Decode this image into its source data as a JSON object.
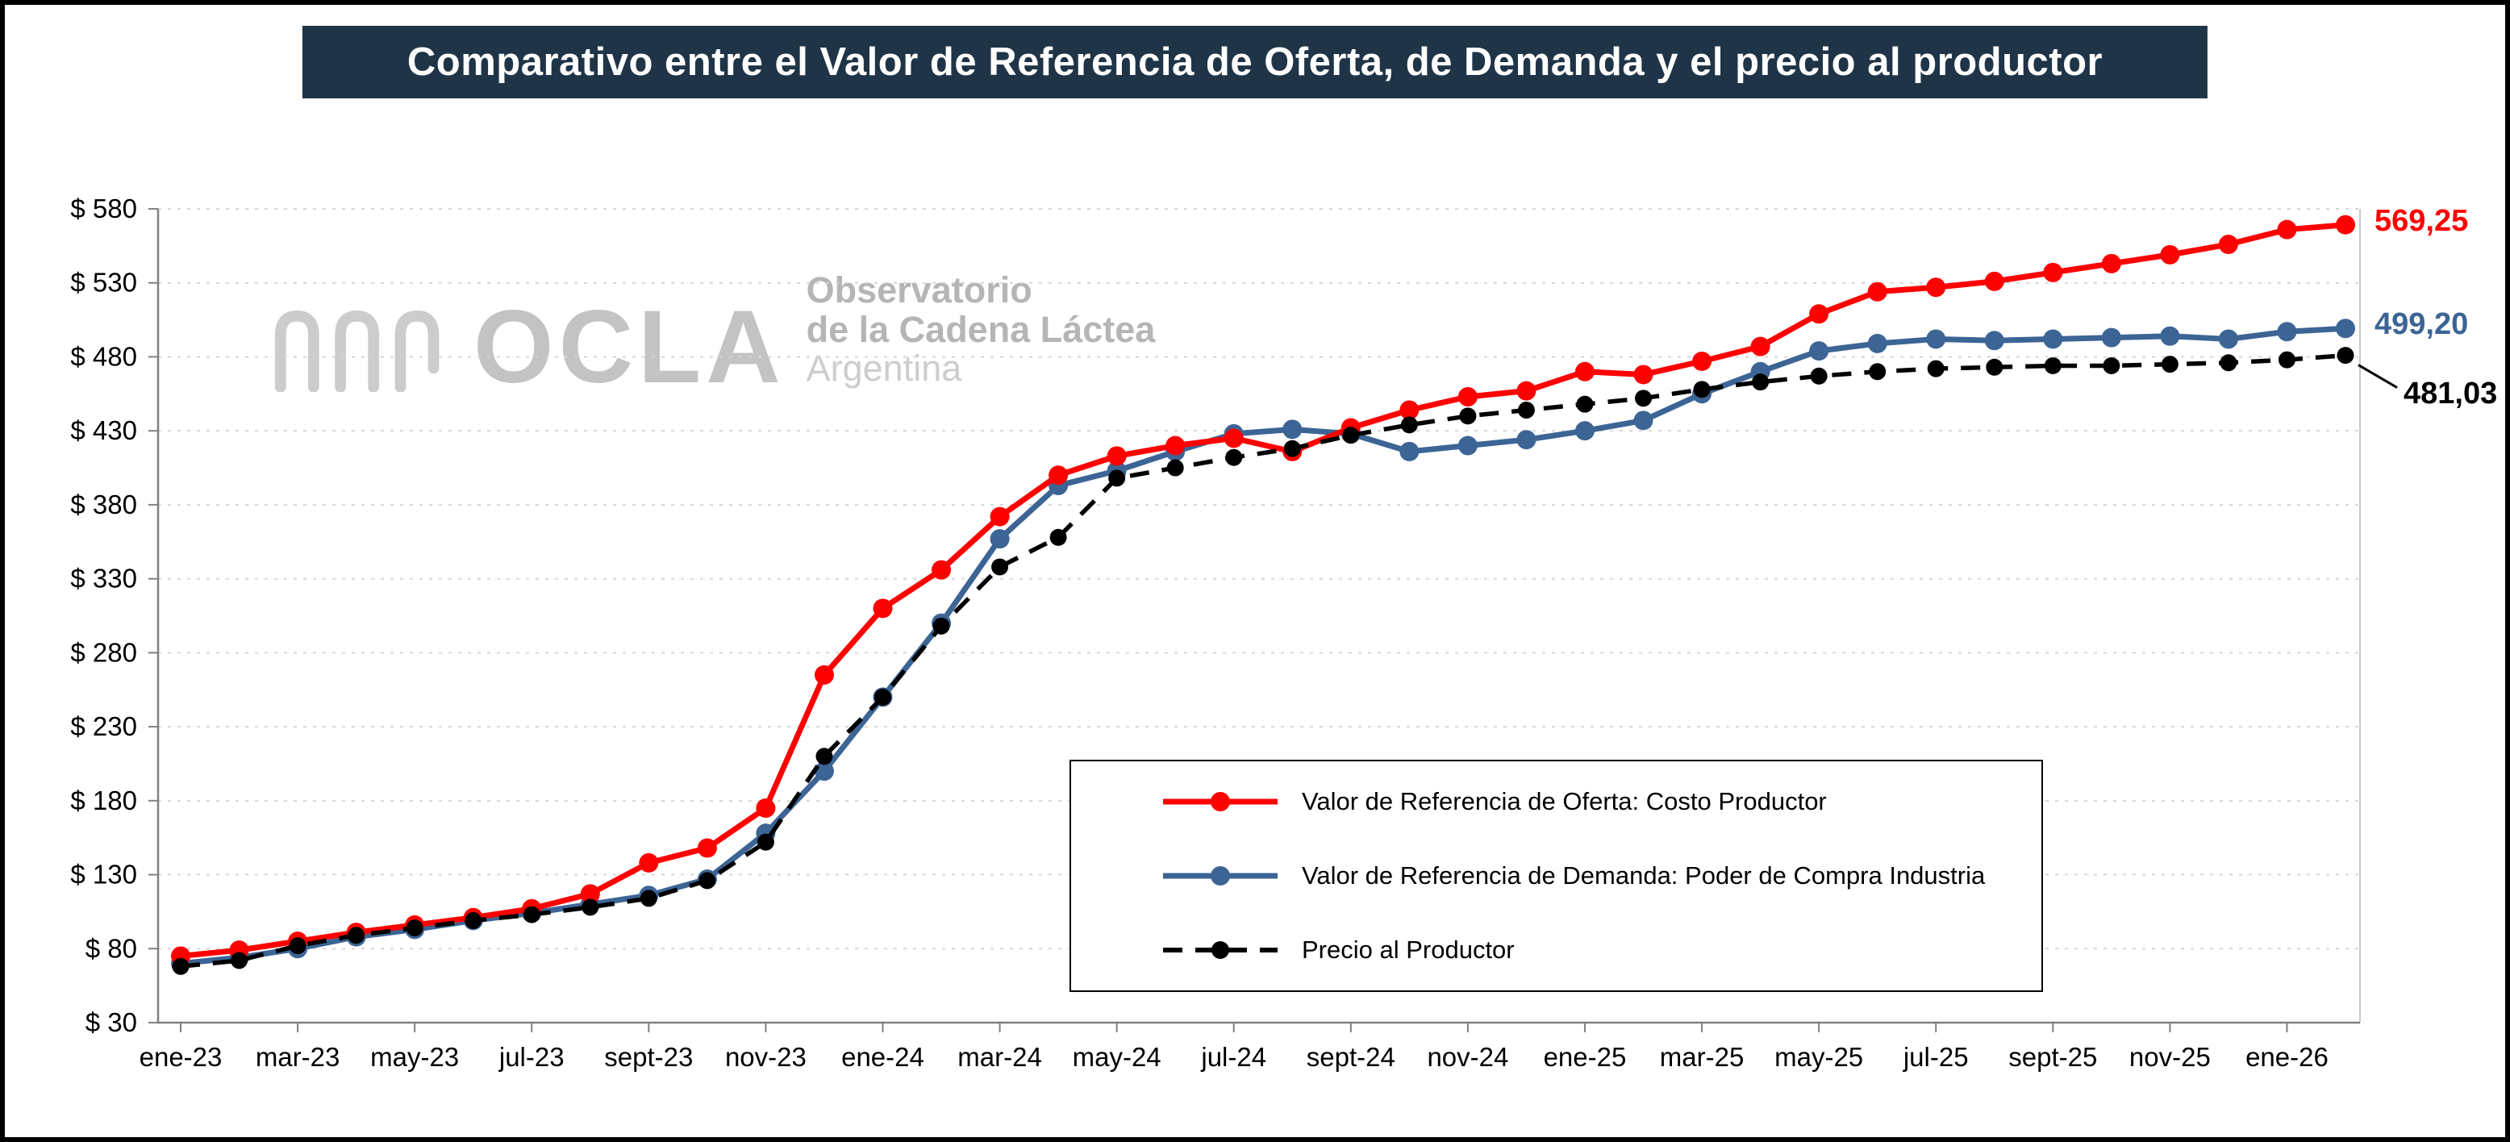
{
  "chart_data": {
    "type": "line",
    "title": "Comparativo entre el Valor de Referencia de Oferta, de Demanda y el precio al productor",
    "ylim": [
      30,
      580
    ],
    "y_ticks": [
      580,
      530,
      480,
      430,
      380,
      330,
      280,
      230,
      180,
      130,
      80,
      30
    ],
    "y_tick_prefix": "$ ",
    "x": [
      "ene-23",
      "feb-23",
      "mar-23",
      "abr-23",
      "may-23",
      "jun-23",
      "jul-23",
      "ago-23",
      "sept-23",
      "oct-23",
      "nov-23",
      "dic-23",
      "ene-24",
      "feb-24",
      "mar-24",
      "abr-24",
      "may-24",
      "jun-24",
      "jul-24",
      "ago-24",
      "sept-24",
      "oct-24",
      "nov-24",
      "dic-24",
      "ene-25",
      "feb-25",
      "mar-25",
      "abr-25",
      "may-25",
      "jun-25",
      "jul-25",
      "ago-25",
      "sept-25",
      "oct-25",
      "nov-25",
      "dic-25",
      "ene-26",
      "feb-26"
    ],
    "x_tick_labels": [
      "ene-23",
      "mar-23",
      "may-23",
      "jul-23",
      "sept-23",
      "nov-23",
      "ene-24",
      "mar-24",
      "may-24",
      "jul-24",
      "sept-24",
      "nov-24",
      "ene-25",
      "mar-25",
      "may-25",
      "jul-25",
      "sept-25",
      "nov-25",
      "ene-26"
    ],
    "grid": "horizontal-dashed",
    "legend_position": "inside-bottom",
    "series": [
      {
        "name": "Valor de Referencia de Oferta: Costo Productor",
        "color": "#FF0000",
        "dash": "solid",
        "end_label": "569,25",
        "values": [
          75,
          79,
          85,
          91,
          96,
          101,
          107,
          117,
          138,
          148,
          175,
          265,
          310,
          336,
          372,
          400,
          413,
          420,
          425,
          416,
          432,
          444,
          453,
          457,
          470,
          468,
          477,
          487,
          509,
          524,
          527,
          531,
          537,
          543,
          549,
          556,
          566,
          569.25
        ]
      },
      {
        "name": "Valor de Referencia de Demanda: Poder de Compra Industria",
        "color": "#3C6495",
        "dash": "solid",
        "end_label": "499,20",
        "values": [
          70,
          74,
          80,
          88,
          93,
          99,
          104,
          110,
          116,
          127,
          158,
          200,
          250,
          300,
          357,
          393,
          403,
          416,
          428,
          431,
          428,
          416,
          420,
          424,
          430,
          437,
          455,
          470,
          484,
          489,
          492,
          491,
          492,
          493,
          494,
          492,
          497,
          499.2
        ]
      },
      {
        "name": "Precio al Productor",
        "color": "#000000",
        "dash": "dashed",
        "end_label": "481,03",
        "values": [
          68,
          72,
          82,
          89,
          94,
          99,
          103,
          108,
          114,
          126,
          152,
          210,
          250,
          298,
          338,
          358,
          398,
          405,
          412,
          418,
          427,
          434,
          440,
          444,
          448,
          452,
          458,
          463,
          467,
          470,
          472,
          473,
          474,
          474,
          475,
          476,
          478,
          481.03
        ]
      }
    ]
  },
  "watermark": {
    "brand": "OCLA",
    "line1": "Observatorio",
    "line2": "de la Cadena Láctea",
    "line3": "Argentina"
  }
}
